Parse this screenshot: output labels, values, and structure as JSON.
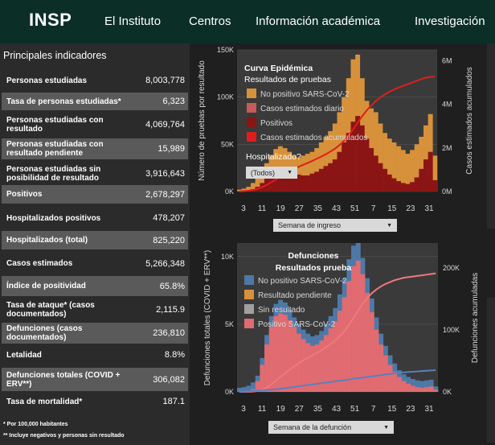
{
  "header": {
    "logo": "INSP",
    "nav": [
      "El Instituto",
      "Centros",
      "Información académica",
      "Investigación"
    ]
  },
  "indicators": {
    "title": "Principales indicadores",
    "rows": [
      {
        "label": "Personas estudiadas",
        "value": "8,003,778"
      },
      {
        "label": "Tasa de personas estudiadas*",
        "value": "6,323"
      },
      {
        "label": "Personas estudiadas con resultado",
        "value": "4,069,764"
      },
      {
        "label": "Personas estudiadas con resultado pendiente",
        "value": "15,989"
      },
      {
        "label": "Personas estudiadas sin posibilidad de resultado",
        "value": "3,916,643"
      },
      {
        "label": "Positivos",
        "value": "2,678,297"
      },
      {
        "label": "Hospitalizados positivos",
        "value": "478,207"
      },
      {
        "label": "Hospitalizados (total)",
        "value": "825,220"
      },
      {
        "label": "Casos estimados",
        "value": "5,266,348"
      },
      {
        "label": "Índice de positividad",
        "value": "65.8%"
      },
      {
        "label": "Tasa de ataque* (casos documentados)",
        "value": "2,115.9"
      },
      {
        "label": "Defunciones (casos documentados)",
        "value": "236,810"
      },
      {
        "label": "Letalidad",
        "value": "8.8%"
      },
      {
        "label": "Defunciones totales (COVID + ERV**)",
        "value": "306,082"
      },
      {
        "label": "Tasa de mortalidad*",
        "value": "187.1"
      }
    ],
    "notes": [
      "* Por 100,000 habitantes",
      "** Incluye negativos y personas sin resultado"
    ]
  },
  "chart_data": [
    {
      "type": "area",
      "title": "Curva Epidémica",
      "subtitle": "Resultados de pruebas",
      "ylabel": "Número de pruebas por resultado",
      "y2label": "Casos estimados acumulados",
      "xlabel": "",
      "ylim": [
        0,
        150000
      ],
      "y2lim": [
        0,
        6500000
      ],
      "yticks": [
        "0K",
        "50K",
        "100K",
        "150K"
      ],
      "y2ticks": [
        "0M",
        "2M",
        "4M",
        "6M"
      ],
      "xticks": [
        "3",
        "11",
        "19",
        "27",
        "35",
        "43",
        "51",
        "7",
        "15",
        "23",
        "31"
      ],
      "legend": [
        "No positivo SARS-CoV-2",
        "Casos estimados diario",
        "Positivos",
        "Casos estimados acumulados"
      ],
      "filter_label": "Hospitalizado?",
      "filter_value": "(Todos)",
      "x_selector": "Semana de ingreso",
      "colors": {
        "negative": "#d7913a",
        "estimated_daily": "#c85a5a",
        "positive": "#8b1515",
        "cumulative": "#e01d1d"
      },
      "series": [
        {
          "name": "No positivo SARS-CoV-2",
          "values": [
            2000,
            3000,
            5000,
            9000,
            15000,
            22000,
            30000,
            38000,
            45000,
            48000,
            46000,
            42000,
            38000,
            36000,
            38000,
            40000,
            42000,
            46000,
            52000,
            58000,
            64000,
            72000,
            84000,
            100000,
            120000,
            140000,
            145000,
            120000,
            96000,
            88000,
            84000,
            72000,
            62000,
            56000,
            52000,
            48000,
            44000,
            40000,
            44000,
            50000,
            58000,
            70000,
            82000,
            38000
          ]
        },
        {
          "name": "Positivos",
          "values": [
            300,
            600,
            1200,
            2500,
            5000,
            9000,
            14000,
            19000,
            23000,
            25000,
            24000,
            22000,
            20000,
            18000,
            17000,
            17000,
            19000,
            21000,
            24000,
            27000,
            30000,
            34000,
            42000,
            52000,
            62000,
            74000,
            80000,
            70000,
            56000,
            46000,
            38000,
            30000,
            24000,
            18000,
            14000,
            11000,
            9000,
            8000,
            10000,
            15000,
            24000,
            34000,
            42000,
            12000
          ]
        },
        {
          "name": "Casos estimados acumulados",
          "values": [
            0,
            0.02,
            0.04,
            0.07,
            0.12,
            0.2,
            0.3,
            0.42,
            0.55,
            0.68,
            0.8,
            0.92,
            1.03,
            1.13,
            1.22,
            1.31,
            1.4,
            1.5,
            1.6,
            1.71,
            1.83,
            1.96,
            2.12,
            2.32,
            2.56,
            2.84,
            3.15,
            3.45,
            3.72,
            3.95,
            4.15,
            4.32,
            4.46,
            4.58,
            4.68,
            4.77,
            4.85,
            4.92,
            5.0,
            5.08,
            5.16,
            5.22,
            5.26,
            5.27
          ]
        }
      ]
    },
    {
      "type": "area",
      "title": "Defunciones",
      "subtitle": "Resultados prueba",
      "ylabel": "Defunciones totales (COVID + ERV**)",
      "y2label": "Defunciones acumuladas",
      "xlabel": "",
      "ylim": [
        0,
        11000
      ],
      "y2lim": [
        0,
        240000
      ],
      "yticks": [
        "0K",
        "5K",
        "10K"
      ],
      "y2ticks": [
        "0K",
        "100K",
        "200K"
      ],
      "xticks": [
        "3",
        "11",
        "19",
        "27",
        "35",
        "43",
        "51",
        "7",
        "15",
        "23",
        "31"
      ],
      "legend": [
        "No positivo SARS-CoV-2",
        "Resultado pendiente",
        "Sin resultado",
        "Positivo SARS-CoV-2"
      ],
      "x_selector": "Semana de la defunción",
      "colors": {
        "negative": "#4e79a7",
        "pending": "#d7913a",
        "no_result": "#a0a0a0",
        "positive": "#e06b70"
      },
      "series": [
        {
          "name": "Positivo SARS-CoV-2",
          "values": [
            0,
            0,
            50,
            200,
            800,
            2000,
            3500,
            4800,
            5600,
            5800,
            5700,
            5300,
            4800,
            4300,
            3900,
            3600,
            3400,
            3500,
            3800,
            4200,
            4700,
            5200,
            6000,
            7000,
            8200,
            9300,
            9700,
            8700,
            7300,
            5900,
            4600,
            3500,
            2700,
            2000,
            1500,
            1100,
            800,
            600,
            450,
            350,
            300,
            350,
            400,
            150
          ]
        },
        {
          "name": "No positivo SARS-CoV-2",
          "values": [
            300,
            350,
            450,
            700,
            1200,
            2500,
            4200,
            5600,
            6500,
            6800,
            6600,
            6100,
            5500,
            5000,
            4600,
            4300,
            4100,
            4200,
            4500,
            5000,
            5600,
            6200,
            7200,
            8400,
            9800,
            10800,
            11000,
            9900,
            8400,
            6900,
            5500,
            4300,
            3400,
            2700,
            2100,
            1600,
            1300,
            1100,
            950,
            850,
            800,
            850,
            900,
            400
          ]
        },
        {
          "name": "Defunciones acumuladas (positivos)",
          "values": [
            0,
            0,
            0.1,
            0.5,
            1.5,
            3.5,
            7,
            12,
            18,
            24,
            30,
            36,
            41,
            46,
            51,
            55,
            59,
            63,
            67,
            72,
            77,
            83,
            90,
            98,
            108,
            119,
            131,
            142,
            151,
            159,
            165,
            170,
            174,
            177,
            180,
            182,
            184,
            185,
            186,
            187,
            188,
            189,
            190,
            191
          ]
        },
        {
          "name": "Defunciones acumuladas (no positivos)",
          "values": [
            0,
            0.5,
            1,
            1.5,
            2,
            2.5,
            3,
            3.5,
            4,
            5,
            6,
            7,
            8,
            9,
            10,
            11,
            12,
            13,
            14,
            15,
            16,
            17,
            18,
            19,
            20,
            21,
            22,
            23,
            24,
            25,
            26,
            27,
            28,
            29,
            30,
            31,
            31.5,
            32,
            32.5,
            33,
            33.5,
            34,
            34.5,
            35
          ]
        }
      ]
    }
  ]
}
